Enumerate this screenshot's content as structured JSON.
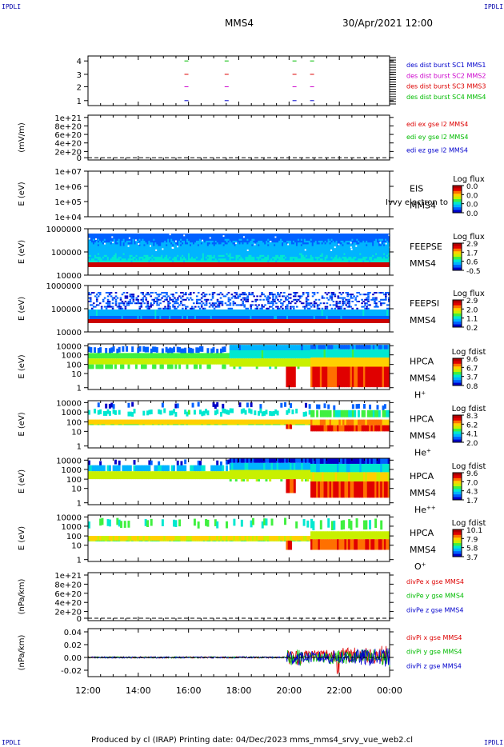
{
  "corners": {
    "top_left": "IPDLI",
    "top_right": "IPDLI",
    "bottom_left": "IPDLI",
    "bottom_right": "IPDLI"
  },
  "header": {
    "spacecraft": "MMS4",
    "datetime": "30/Apr/2021 12:00"
  },
  "footer": {
    "text": "Produced by cl (IRAP)   Printing date: 04/Dec/2023   mms_mms4_srvy_vue_web2.cl"
  },
  "chart_data": [
    {
      "id": "burst",
      "type": "scatter",
      "yticks": [
        "4",
        "3",
        "2",
        "1"
      ],
      "legend": [
        {
          "text": "des dist burst SC1 MMS1",
          "color": "#0000cc"
        },
        {
          "text": "des dist burst SC2 MMS2",
          "color": "#cc00cc"
        },
        {
          "text": "des dist burst SC3 MMS3",
          "color": "#dd0000"
        },
        {
          "text": "des dist burst SC4 MMS4",
          "color": "#00bb00"
        }
      ],
      "series": [
        {
          "level": 4,
          "color": "#00bb00",
          "x_hours": [
            15.9,
            17.5,
            20.2,
            20.9
          ]
        },
        {
          "level": 3,
          "color": "#dd0000",
          "x_hours": [
            15.9,
            17.5,
            20.2,
            20.9
          ]
        },
        {
          "level": 2,
          "color": "#cc00cc",
          "x_hours": [
            15.9,
            17.5,
            20.2,
            20.9
          ]
        },
        {
          "level": 1,
          "color": "#0000cc",
          "x_hours": [
            15.9,
            17.5,
            20.2,
            20.9
          ]
        }
      ]
    },
    {
      "id": "edi",
      "type": "line",
      "ylabel": "(mV/m)",
      "yticks": [
        "1e+21",
        "8e+20",
        "6e+20",
        "4e+20",
        "2e+20",
        "0"
      ],
      "legend": [
        {
          "text": "edi ex gse l2 MMS4",
          "color": "#dd0000"
        },
        {
          "text": "edi ey gse l2 MMS4",
          "color": "#00bb00"
        },
        {
          "text": "edi ez gse l2 MMS4",
          "color": "#0000cc"
        }
      ]
    },
    {
      "id": "eis",
      "type": "heatmap",
      "ylabel": "E (eV)",
      "yticks": [
        "1e+07",
        "1e+06",
        "1e+05",
        "1e+04"
      ],
      "instrument": "EIS",
      "sub": "MMS4",
      "note": "Ivvy electron to",
      "cbar_title": "Log flux",
      "cbar_ticks": [
        "0.0",
        "0.0",
        "0.0",
        "0.0"
      ]
    },
    {
      "id": "feepse",
      "type": "heatmap",
      "ylabel": "E (eV)",
      "yticks": [
        "1000000",
        "100000",
        "10000"
      ],
      "instrument": "FEEPSE",
      "sub": "MMS4",
      "cbar_title": "Log flux",
      "cbar_ticks": [
        "2.9",
        "1.7",
        "0.6",
        "-0.5"
      ]
    },
    {
      "id": "feepsi",
      "type": "heatmap",
      "ylabel": "E (eV)",
      "yticks": [
        "1000000",
        "100000",
        "10000"
      ],
      "instrument": "FEEPSI",
      "sub": "MMS4",
      "cbar_title": "Log flux",
      "cbar_ticks": [
        "2.9",
        "2.0",
        "1.1",
        "0.2"
      ]
    },
    {
      "id": "hpca_h",
      "type": "heatmap",
      "ylabel": "E (eV)",
      "yticks": [
        "10000",
        "1000",
        "100",
        "10",
        "1"
      ],
      "instrument": "HPCA",
      "sub": "MMS4",
      "species": "H",
      "charge": "+",
      "cbar_title": "Log fdist",
      "cbar_ticks": [
        "9.6",
        "6.7",
        "3.7",
        "0.8"
      ]
    },
    {
      "id": "hpca_he1",
      "type": "heatmap",
      "ylabel": "E (eV)",
      "yticks": [
        "10000",
        "1000",
        "100",
        "10",
        "1"
      ],
      "instrument": "HPCA",
      "sub": "MMS4",
      "species": "He",
      "charge": "+",
      "cbar_title": "Log fdist",
      "cbar_ticks": [
        "8.3",
        "6.2",
        "4.1",
        "2.0"
      ]
    },
    {
      "id": "hpca_he2",
      "type": "heatmap",
      "ylabel": "E (eV)",
      "yticks": [
        "10000",
        "1000",
        "100",
        "10",
        "1"
      ],
      "instrument": "HPCA",
      "sub": "MMS4",
      "species": "He",
      "charge": "++",
      "cbar_title": "Log fdist",
      "cbar_ticks": [
        "9.6",
        "7.0",
        "4.3",
        "1.7"
      ]
    },
    {
      "id": "hpca_o",
      "type": "heatmap",
      "ylabel": "E (eV)",
      "yticks": [
        "10000",
        "1000",
        "100",
        "10",
        "1"
      ],
      "instrument": "HPCA",
      "sub": "MMS4",
      "species": "O",
      "charge": "+",
      "cbar_title": "Log fdist",
      "cbar_ticks": [
        "10.1",
        "7.9",
        "5.8",
        "3.7"
      ]
    },
    {
      "id": "divpe",
      "type": "line",
      "ylabel": "(nPa/km)",
      "yticks": [
        "1e+21",
        "8e+20",
        "6e+20",
        "4e+20",
        "2e+20",
        "0"
      ],
      "legend": [
        {
          "text": "divPe x gse MMS4",
          "color": "#dd0000"
        },
        {
          "text": "divPe y gse MMS4",
          "color": "#00bb00"
        },
        {
          "text": "divPe z gse MMS4",
          "color": "#0000cc"
        }
      ]
    },
    {
      "id": "divpi",
      "type": "line",
      "ylabel": "(nPa/km)",
      "yticks": [
        "0.04",
        "0.02",
        "0.00",
        "-0.02"
      ],
      "ylim": [
        -0.03,
        0.045
      ],
      "legend": [
        {
          "text": "divPi x gse MMS4",
          "color": "#dd0000"
        },
        {
          "text": "divPi y gse MMS4",
          "color": "#00bb00"
        },
        {
          "text": "divPi z gse MMS4",
          "color": "#0000cc"
        }
      ]
    }
  ],
  "time_axis": {
    "labels": [
      "12:00",
      "14:00",
      "16:00",
      "18:00",
      "20:00",
      "22:00",
      "00:00"
    ],
    "range_hours": [
      12,
      24
    ]
  },
  "colors": {
    "colormap": [
      "#0000c8",
      "#0060ff",
      "#00b4ff",
      "#00e8d0",
      "#40f040",
      "#c8f000",
      "#ffd000",
      "#ff7000",
      "#e00000",
      "#b00000"
    ]
  }
}
